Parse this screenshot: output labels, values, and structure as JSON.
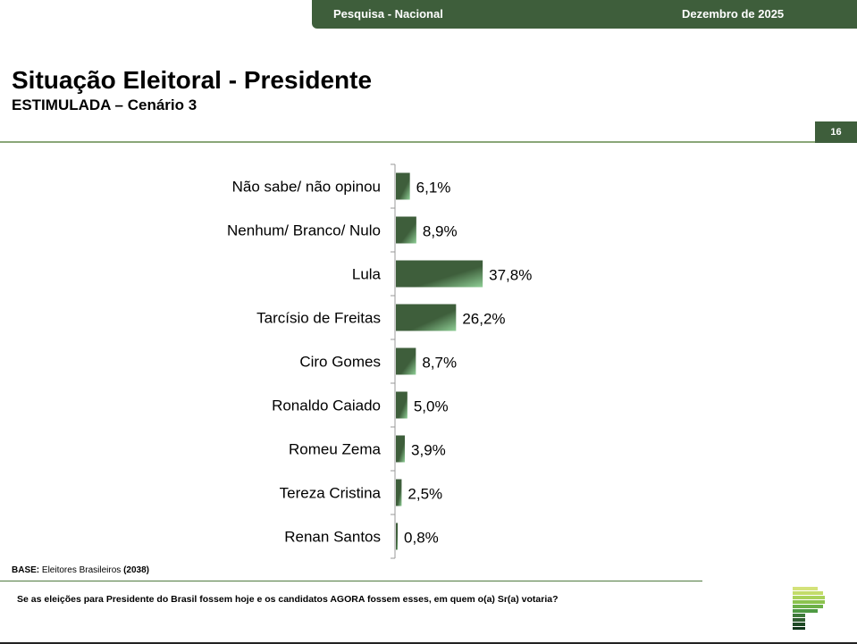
{
  "header": {
    "survey": "Pesquisa - Nacional",
    "date": "Dezembro de 2025",
    "page_number": "16"
  },
  "title": "Situação Eleitoral - Presidente",
  "subtitle": "ESTIMULADA – Cenário 3",
  "footer": {
    "base_label": "BASE:",
    "base_text": "Eleitores Brasileiros",
    "base_count": "(2038)",
    "question": "Se as eleições para Presidente do Brasil fossem hoje e os candidatos AGORA fossem esses, em quem o(a) Sr(a) votaria?"
  },
  "colors": {
    "bar_dark": "#3e5e3b",
    "bar_light": "#8fcf96",
    "accent": "#3e5e3b"
  },
  "chart_data": {
    "type": "bar",
    "orientation": "horizontal",
    "categories": [
      "Não sabe/ não opinou",
      "Nenhum/ Branco/ Nulo",
      "Lula",
      "Tarcísio de Freitas",
      "Ciro Gomes",
      "Ronaldo Caiado",
      "Romeu Zema",
      "Tereza Cristina",
      "Renan Santos"
    ],
    "values": [
      6.1,
      8.9,
      37.8,
      26.2,
      8.7,
      5.0,
      3.9,
      2.5,
      0.8
    ],
    "labels": [
      "6,1%",
      "8,9%",
      "37,8%",
      "26,2%",
      "8,7%",
      "5,0%",
      "3,9%",
      "2,5%",
      "0,8%"
    ],
    "unit": "%",
    "xlim": [
      0,
      100
    ],
    "grid": false
  }
}
